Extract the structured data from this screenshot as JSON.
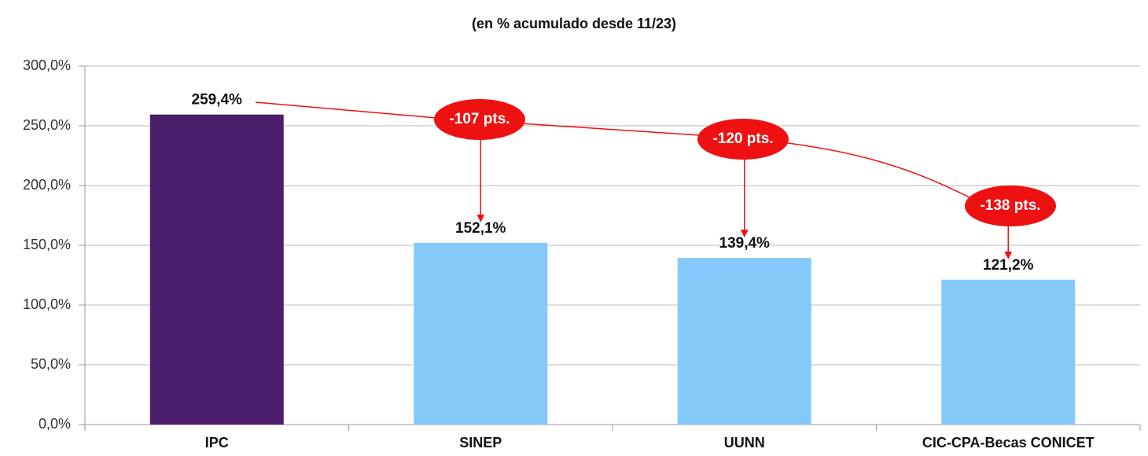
{
  "chart_data": {
    "type": "bar",
    "title": "(en % acumulado desde 11/23)",
    "categories": [
      "IPC",
      "SINEP",
      "UUNN",
      "CIC-CPA-Becas CONICET"
    ],
    "values": [
      259.4,
      152.1,
      139.4,
      121.2
    ],
    "value_labels": [
      "259,4%",
      "152,1%",
      "139,4%",
      "121,2%"
    ],
    "colors": [
      "#4b1f6b",
      "#85c8fa",
      "#85c8fa",
      "#85c8fa"
    ],
    "ylim": [
      0,
      300
    ],
    "yticks": [
      {
        "value": 0,
        "label": "0,0%"
      },
      {
        "value": 50,
        "label": "50,0%"
      },
      {
        "value": 100,
        "label": "100,0%"
      },
      {
        "value": 150,
        "label": "150,0%"
      },
      {
        "value": 200,
        "label": "200,0%"
      },
      {
        "value": 250,
        "label": "250,0%"
      },
      {
        "value": 300,
        "label": "300,0%"
      }
    ],
    "grid": true,
    "annotations": [
      "-107 pts.",
      "-120 pts.",
      "-138 pts."
    ],
    "annotation_color": "#ee1111"
  }
}
